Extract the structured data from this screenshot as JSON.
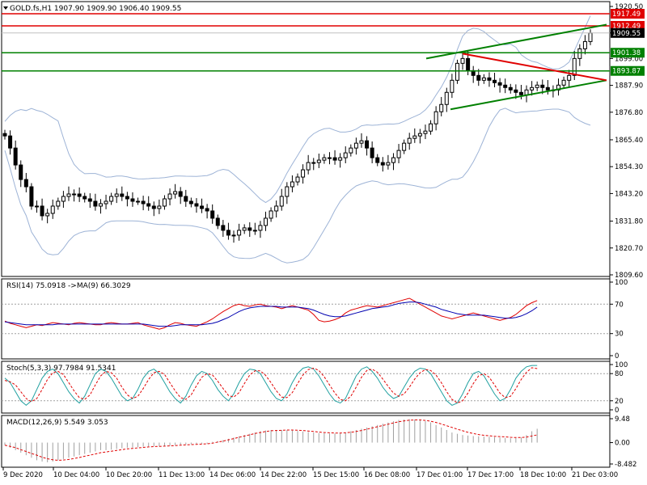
{
  "chart_data": {
    "type": "candlestick",
    "symbol": "GOLD.fs",
    "timeframe": "H1",
    "header": {
      "text": "GOLD.fs,H1  1907.90 1909.90 1906.40 1909.55"
    },
    "price_axis": {
      "ticks": [
        "1920.50",
        "1909.55",
        "1899.00",
        "1887.90",
        "1876.80",
        "1865.40",
        "1854.30",
        "1843.20",
        "1831.80",
        "1820.70",
        "1809.60"
      ],
      "range": [
        1809.6,
        1920.5
      ]
    },
    "levels": [
      {
        "label": "1917.49",
        "price": 1917.49,
        "color": "#e00000"
      },
      {
        "label": "1912.49",
        "price": 1912.49,
        "color": "#e00000"
      },
      {
        "label": "1909.55",
        "price": 1909.55,
        "color": "#000000"
      },
      {
        "label": "1901.38",
        "price": 1901.38,
        "color": "#008000"
      },
      {
        "label": "1893.87",
        "price": 1893.87,
        "color": "#008000"
      }
    ],
    "time_axis": {
      "labels": [
        "9 Dec 2020",
        "10 Dec 04:00",
        "10 Dec 20:00",
        "11 Dec 13:00",
        "14 Dec 06:00",
        "14 Dec 22:00",
        "15 Dec 15:00",
        "16 Dec 08:00",
        "17 Dec 01:00",
        "17 Dec 17:00",
        "18 Dec 10:00",
        "21 Dec 03:00"
      ]
    },
    "close_series": [
      1867,
      1862,
      1855,
      1849,
      1846,
      1838,
      1838,
      1834,
      1835,
      1838,
      1840,
      1842,
      1843,
      1843,
      1842,
      1841,
      1840,
      1838,
      1839,
      1840,
      1842,
      1843,
      1842,
      1841,
      1840,
      1840,
      1839,
      1838,
      1837,
      1838,
      1841,
      1843,
      1844,
      1842,
      1840,
      1839,
      1838,
      1837,
      1836,
      1833,
      1830,
      1828,
      1826,
      1826,
      1828,
      1829,
      1828,
      1828,
      1830,
      1833,
      1836,
      1838,
      1842,
      1846,
      1848,
      1850,
      1853,
      1856,
      1856,
      1857,
      1858,
      1858,
      1857,
      1858,
      1860,
      1862,
      1864,
      1865,
      1862,
      1858,
      1856,
      1855,
      1856,
      1858,
      1861,
      1864,
      1866,
      1867,
      1868,
      1869,
      1872,
      1877,
      1880,
      1885,
      1890,
      1897,
      1899,
      1894,
      1892,
      1890,
      1891,
      1890,
      1889,
      1888,
      1887,
      1886,
      1885,
      1884,
      1886,
      1887,
      1888,
      1887,
      1886,
      1886,
      1888,
      1890,
      1892,
      1899,
      1903,
      1906,
      1909.55
    ],
    "indicators": [
      {
        "name": "RSI",
        "header": "RSI(14) 75.0918  ->MA(9) 66.3029",
        "axis_ticks": [
          "100",
          "70",
          "30",
          "0"
        ],
        "range": [
          0,
          100
        ],
        "levels": [
          70,
          30
        ],
        "series": [
          {
            "name": "RSI(14)",
            "color": "#e00000",
            "values": [
              47,
              44,
              42,
              40,
              38,
              40,
              42,
              41,
              43,
              45,
              44,
              43,
              42,
              44,
              45,
              44,
              43,
              42,
              42,
              44,
              45,
              44,
              43,
              43,
              44,
              45,
              42,
              40,
              38,
              36,
              38,
              42,
              45,
              44,
              42,
              41,
              40,
              43,
              46,
              50,
              55,
              60,
              64,
              68,
              70,
              68,
              67,
              69,
              70,
              68,
              67,
              66,
              64,
              66,
              68,
              66,
              64,
              62,
              56,
              48,
              46,
              47,
              49,
              52,
              58,
              62,
              64,
              66,
              68,
              67,
              66,
              68,
              70,
              72,
              74,
              76,
              78,
              74,
              70,
              66,
              62,
              58,
              54,
              52,
              50,
              52,
              54,
              56,
              58,
              56,
              54,
              52,
              50,
              48,
              50,
              52,
              56,
              62,
              68,
              72,
              75
            ]
          },
          {
            "name": "MA(9)",
            "color": "#0000b0",
            "values": [
              46,
              45,
              44,
              43,
              42,
              42,
              42,
              42,
              42,
              42,
              43,
              43,
              43,
              43,
              43,
              43,
              43,
              43,
              43,
              43,
              43,
              43,
              43,
              43,
              43,
              43,
              43,
              42,
              41,
              40,
              40,
              40,
              41,
              42,
              42,
              42,
              42,
              42,
              43,
              44,
              46,
              49,
              52,
              56,
              60,
              63,
              65,
              66,
              67,
              67,
              67,
              67,
              66,
              66,
              66,
              66,
              65,
              64,
              62,
              59,
              56,
              54,
              53,
              53,
              54,
              56,
              58,
              60,
              62,
              64,
              65,
              66,
              67,
              69,
              71,
              72,
              73,
              73,
              72,
              70,
              68,
              66,
              63,
              61,
              59,
              57,
              56,
              55,
              55,
              55,
              55,
              54,
              53,
              52,
              51,
              51,
              52,
              54,
              57,
              61,
              66
            ]
          }
        ]
      },
      {
        "name": "Stochastic",
        "header": "Stoch(5,3,3) 97.7984 91.5341",
        "axis_ticks": [
          "100",
          "80",
          "20",
          "0"
        ],
        "range": [
          0,
          100
        ],
        "levels": [
          80,
          20
        ],
        "series": [
          {
            "name": "%K",
            "color": "#20a0a0",
            "values": [
              70,
              60,
              40,
              20,
              10,
              20,
              45,
              70,
              85,
              90,
              80,
              60,
              40,
              25,
              15,
              30,
              55,
              80,
              90,
              85,
              70,
              50,
              30,
              20,
              25,
              45,
              70,
              85,
              90,
              80,
              60,
              40,
              25,
              15,
              30,
              55,
              75,
              85,
              80,
              65,
              45,
              30,
              20,
              35,
              60,
              80,
              90,
              88,
              80,
              60,
              40,
              25,
              20,
              35,
              60,
              80,
              92,
              95,
              90,
              75,
              55,
              35,
              20,
              15,
              25,
              50,
              75,
              90,
              95,
              85,
              70,
              50,
              35,
              25,
              30,
              50,
              70,
              85,
              92,
              90,
              80,
              60,
              40,
              20,
              10,
              15,
              35,
              60,
              80,
              85,
              75,
              55,
              35,
              20,
              25,
              45,
              70,
              85,
              95,
              98,
              98
            ]
          },
          {
            "name": "%D",
            "color": "#e00000",
            "values": [
              65,
              62,
              55,
              40,
              25,
              18,
              25,
              45,
              67,
              82,
              85,
              78,
              60,
              42,
              27,
              23,
              33,
              55,
              75,
              85,
              82,
              70,
              50,
              33,
              25,
              30,
              47,
              67,
              82,
              85,
              78,
              60,
              42,
              27,
              23,
              33,
              53,
              72,
              80,
              77,
              63,
              47,
              32,
              28,
              38,
              58,
              77,
              86,
              86,
              76,
              60,
              42,
              28,
              27,
              38,
              58,
              77,
              89,
              92,
              87,
              73,
              55,
              37,
              23,
              20,
              30,
              50,
              72,
              87,
              90,
              83,
              68,
              52,
              37,
              30,
              35,
              50,
              68,
              82,
              89,
              87,
              77,
              60,
              40,
              23,
              15,
              20,
              37,
              58,
              75,
              80,
              72,
              55,
              37,
              27,
              30,
              47,
              67,
              83,
              93,
              91
            ]
          }
        ]
      },
      {
        "name": "MACD",
        "header": "MACD(12,26,9) 5.549 3.053",
        "axis_ticks": [
          "9.48",
          "0.00",
          "-8.482"
        ],
        "range": [
          -8.482,
          9.48
        ],
        "main_color": "#a0a0a0",
        "signal_color": "#e00000",
        "main": [
          -1,
          -2,
          -3,
          -4,
          -5,
          -6,
          -7,
          -7.5,
          -7.8,
          -7.5,
          -7,
          -6.5,
          -6,
          -5.5,
          -5,
          -4.5,
          -4,
          -3.5,
          -3,
          -3,
          -2.8,
          -2.5,
          -2.2,
          -2,
          -2,
          -1.8,
          -1.6,
          -1.5,
          -1.4,
          -1.4,
          -1.3,
          -1.2,
          -1,
          -0.8,
          -0.7,
          -0.6,
          -0.5,
          -0.4,
          -0.4,
          0.3,
          0.6,
          1,
          1.5,
          2,
          2.5,
          3,
          3.5,
          4,
          4.5,
          4.8,
          5,
          5,
          5,
          5,
          4.8,
          4.6,
          4.4,
          4.2,
          4,
          3.8,
          3.7,
          3.6,
          3.6,
          3.8,
          4,
          4.5,
          5,
          5.5,
          6,
          6.5,
          7,
          7.5,
          8,
          8.5,
          9,
          9.2,
          9.3,
          9.2,
          9,
          8.5,
          8,
          7,
          6,
          5,
          4,
          3.5,
          3,
          2.8,
          2.6,
          2.5,
          2.4,
          2.3,
          2.2,
          2,
          1.8,
          1.7,
          1.8,
          2,
          3,
          4.5,
          5.5
        ],
        "signal": [
          -1,
          -1.5,
          -2,
          -2.8,
          -3.5,
          -4.3,
          -5,
          -5.8,
          -6.4,
          -6.8,
          -7,
          -6.9,
          -6.7,
          -6.3,
          -5.9,
          -5.4,
          -5,
          -4.5,
          -4,
          -3.7,
          -3.4,
          -3.1,
          -2.8,
          -2.5,
          -2.3,
          -2.1,
          -1.9,
          -1.7,
          -1.6,
          -1.5,
          -1.4,
          -1.3,
          -1.2,
          -1,
          -0.9,
          -0.8,
          -0.7,
          -0.6,
          -0.5,
          -0.2,
          0.2,
          0.6,
          1.1,
          1.6,
          2.1,
          2.6,
          3.1,
          3.6,
          4,
          4.4,
          4.7,
          4.8,
          4.9,
          5,
          5,
          4.9,
          4.8,
          4.6,
          4.4,
          4.2,
          4,
          3.9,
          3.8,
          3.8,
          3.9,
          4.1,
          4.4,
          4.8,
          5.3,
          5.8,
          6.3,
          6.8,
          7.3,
          7.8,
          8.3,
          8.6,
          8.9,
          9,
          9,
          8.8,
          8.5,
          8,
          7.4,
          6.7,
          6,
          5.3,
          4.7,
          4.1,
          3.6,
          3.2,
          2.9,
          2.7,
          2.5,
          2.4,
          2.3,
          2.1,
          2,
          2,
          2.2,
          2.6,
          3.05
        ]
      }
    ]
  }
}
